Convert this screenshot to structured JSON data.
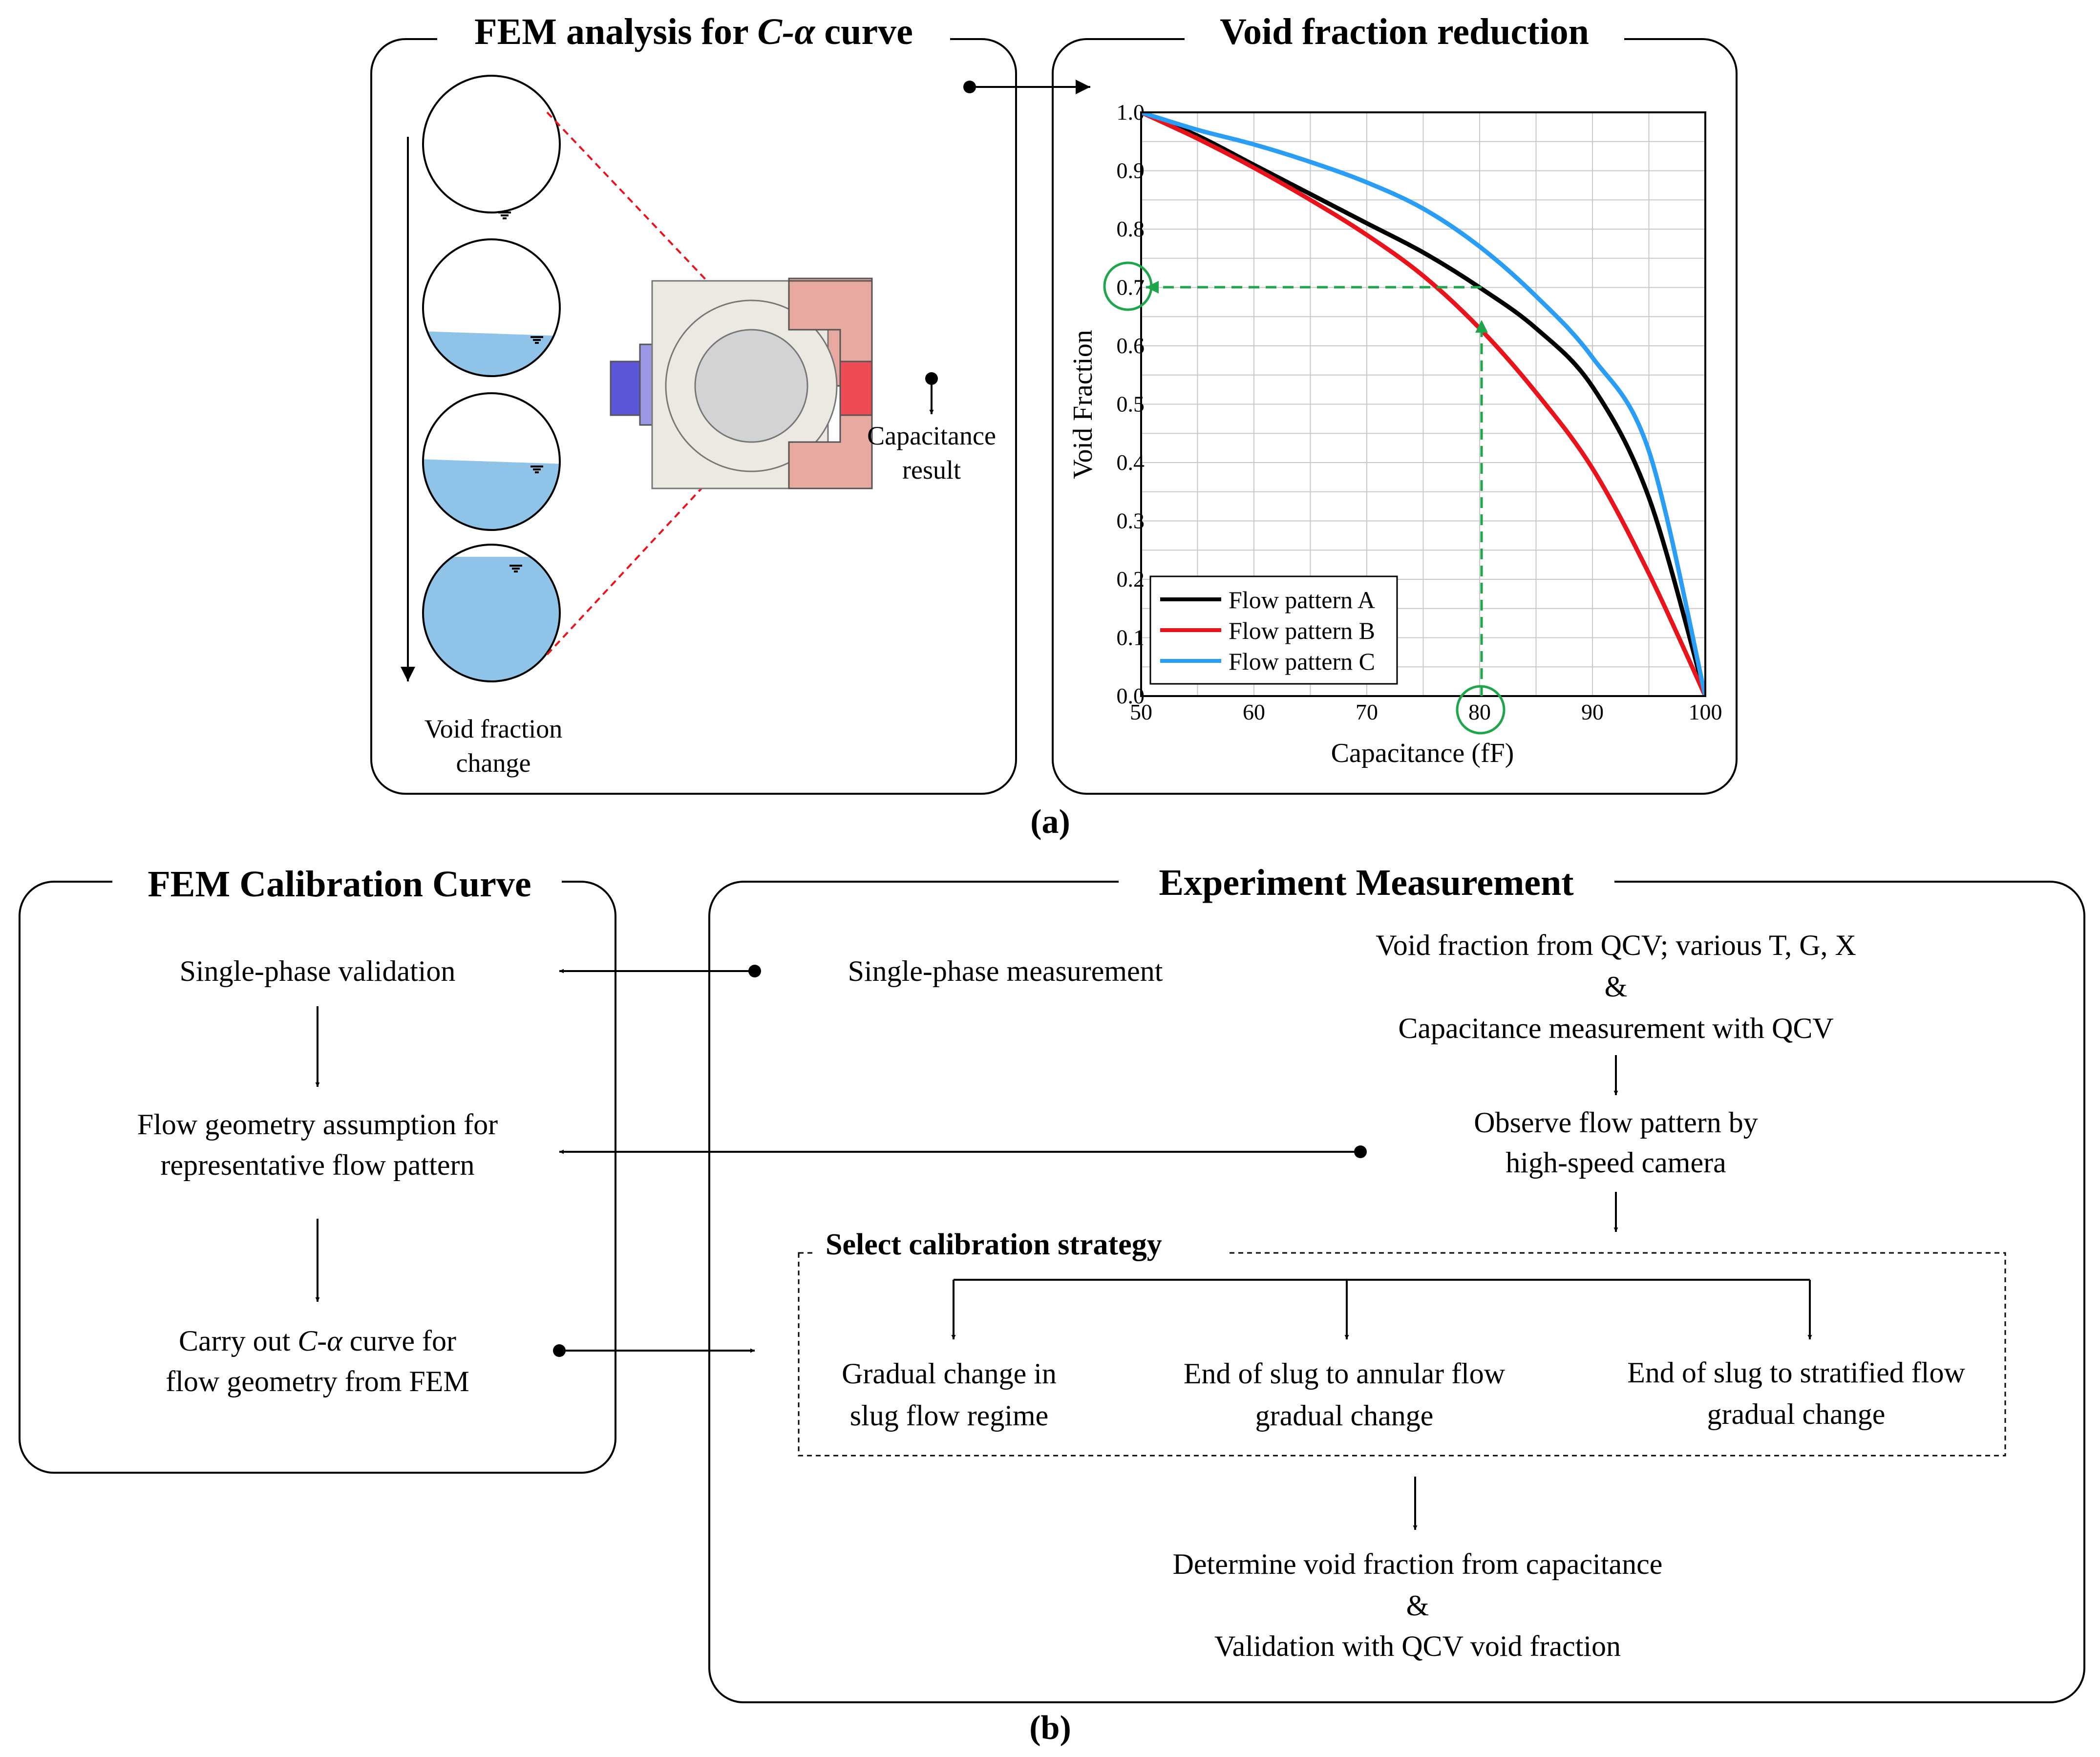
{
  "colors": {
    "water": "#8fc3e8",
    "fem_red_line": "#e8141b",
    "green_marker": "#1fa54a",
    "pattern_a": "#000000",
    "pattern_b": "#e8141b",
    "pattern_c": "#2a9df4",
    "sensor_body": "#ebe9e1",
    "blue_electrode": "#5b55d8",
    "red_electrode": "#ee4c55",
    "salmon_frame": "#e8aaa0"
  },
  "panel_a": {
    "caption": "(a)",
    "fem_box": {
      "title_prefix": "FEM analysis for ",
      "title_italic": "C-α",
      "title_suffix": " curve",
      "left_label_line1": "Void fraction",
      "left_label_line2": "change",
      "right_label_line1": "Capacitance",
      "right_label_line2": "result"
    },
    "void_box": {
      "title": "Void fraction reduction"
    }
  },
  "chart_data": {
    "type": "line",
    "title": "Void fraction reduction",
    "xlabel": "Capacitance (fF)",
    "ylabel": "Void Fraction",
    "xlim": [
      50,
      100
    ],
    "ylim": [
      0.0,
      1.0
    ],
    "grid": true,
    "x_ticks": [
      "50",
      "60",
      "70",
      "80",
      "90",
      "100"
    ],
    "y_ticks": [
      "0.0",
      "0.1",
      "0.2",
      "0.3",
      "0.4",
      "0.5",
      "0.6",
      "0.7",
      "0.8",
      "0.9",
      "1.0"
    ],
    "legend_position": "bottom-left",
    "series": [
      {
        "name": "Flow pattern A",
        "color": "#000000",
        "x": [
          50,
          55,
          60,
          65,
          70,
          75,
          80,
          85,
          90,
          95,
          100
        ],
        "y": [
          1.0,
          0.96,
          0.91,
          0.86,
          0.81,
          0.76,
          0.7,
          0.63,
          0.53,
          0.34,
          0.0
        ]
      },
      {
        "name": "Flow pattern B",
        "color": "#e8141b",
        "x": [
          50,
          55,
          60,
          65,
          70,
          75,
          80,
          85,
          90,
          95,
          100
        ],
        "y": [
          1.0,
          0.955,
          0.905,
          0.85,
          0.79,
          0.72,
          0.63,
          0.52,
          0.39,
          0.21,
          0.0
        ]
      },
      {
        "name": "Flow pattern C",
        "color": "#2a9df4",
        "x": [
          50,
          55,
          60,
          65,
          70,
          75,
          80,
          85,
          90,
          95,
          100
        ],
        "y": [
          1.0,
          0.97,
          0.945,
          0.915,
          0.88,
          0.835,
          0.77,
          0.685,
          0.58,
          0.42,
          0.0
        ]
      }
    ],
    "annotations": [
      {
        "type": "lookup",
        "x": 80,
        "y": 0.7,
        "note": "green dashed lookup from 80 fF to 0.7 void fraction"
      }
    ]
  },
  "panel_b": {
    "caption": "(b)",
    "fem_calibration": {
      "title": "FEM Calibration Curve",
      "step1": "Single-phase validation",
      "step2_line1": "Flow geometry assumption for",
      "step2_line2": "representative flow pattern",
      "step3_line1_prefix": "Carry out ",
      "step3_line1_italic": "C-α",
      "step3_line1_suffix": " curve for",
      "step3_line2": "flow geometry from FEM"
    },
    "experiment": {
      "title": "Experiment Measurement",
      "single_phase": "Single-phase measurement",
      "void_qcv": "Void fraction from QCV; various T, G, X",
      "amp1": "&",
      "capacitance_qcv": "Capacitance measurement with QCV",
      "observe_line1": "Observe flow pattern by",
      "observe_line2": "high-speed camera",
      "strategy_title": "Select calibration strategy",
      "opt1_line1": "Gradual change in",
      "opt1_line2": "slug flow regime",
      "opt2_line1": "End of slug to annular flow",
      "opt2_line2": "gradual change",
      "opt3_line1": "End of slug to stratified flow",
      "opt3_line2": "gradual change",
      "determine": "Determine void fraction from capacitance",
      "amp2": "&",
      "validation": "Validation with QCV void fraction"
    }
  }
}
